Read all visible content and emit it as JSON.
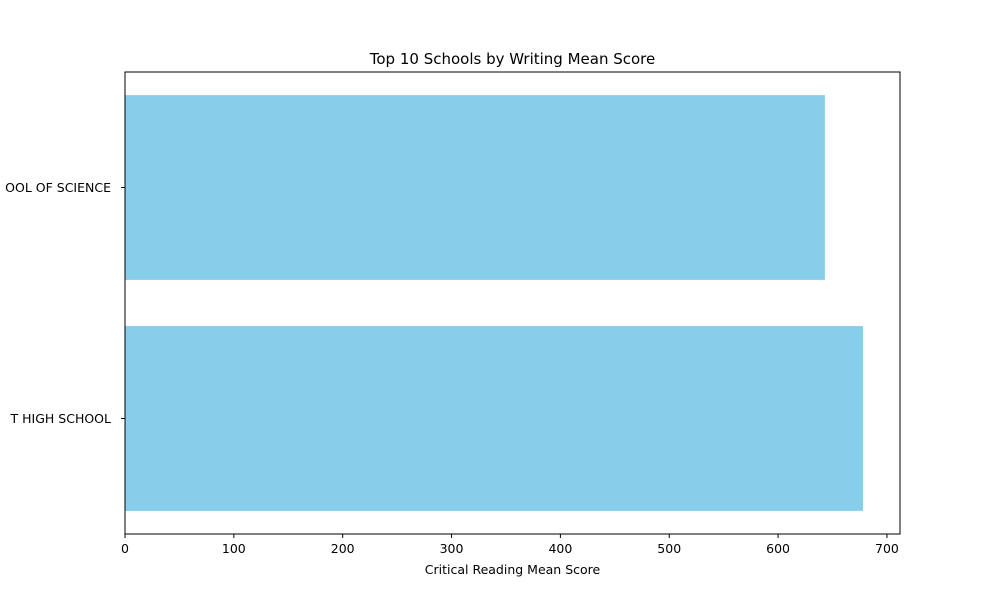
{
  "chart_data": {
    "type": "bar",
    "orientation": "horizontal",
    "title": "Top 10 Schools by Writing Mean Score",
    "xlabel": "Critical Reading Mean Score",
    "ylabel": "",
    "categories": [
      "T HIGH SCHOOL",
      "OOL OF SCIENCE"
    ],
    "values": [
      678,
      643
    ],
    "xlim": [
      0,
      712
    ],
    "xticks": [
      0,
      100,
      200,
      300,
      400,
      500,
      600,
      700
    ],
    "bar_color": "#87CEEB",
    "grid": false,
    "legend": "none"
  }
}
